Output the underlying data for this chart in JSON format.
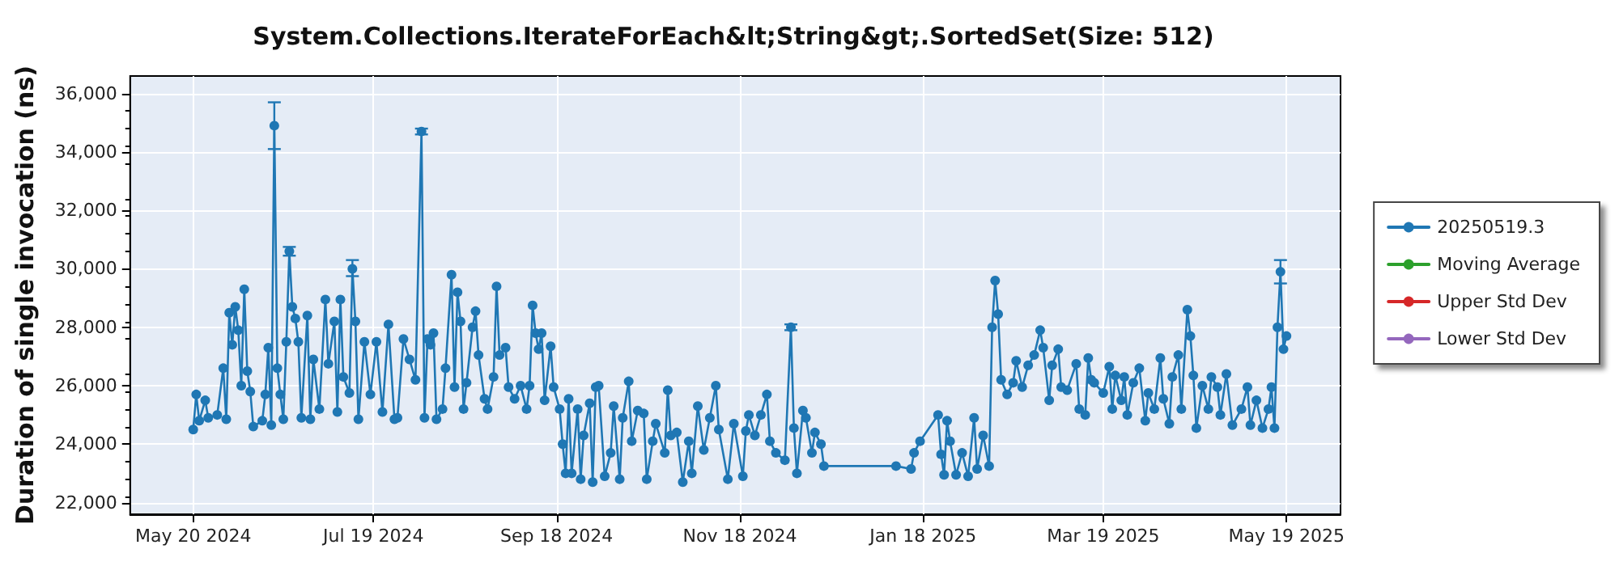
{
  "chart_data": {
    "type": "line",
    "title": "System.Collections.IterateForEach&lt;String&gt;.SortedSet(Size: 512)",
    "ylabel": "Duration of single invocation (ns)",
    "x": [
      "2024-05-20",
      "2024-05-21",
      "2024-05-22",
      "2024-05-24",
      "2024-05-25",
      "2024-05-28",
      "2024-05-30",
      "2024-05-31",
      "2024-06-01",
      "2024-06-02",
      "2024-06-03",
      "2024-06-04",
      "2024-06-05",
      "2024-06-06",
      "2024-06-07",
      "2024-06-08",
      "2024-06-09",
      "2024-06-12",
      "2024-06-13",
      "2024-06-14",
      "2024-06-15",
      "2024-06-16",
      "2024-06-17",
      "2024-06-18",
      "2024-06-19",
      "2024-06-20",
      "2024-06-21",
      "2024-06-22",
      "2024-06-23",
      "2024-06-24",
      "2024-06-25",
      "2024-06-27",
      "2024-06-28",
      "2024-06-29",
      "2024-07-01",
      "2024-07-03",
      "2024-07-04",
      "2024-07-06",
      "2024-07-07",
      "2024-07-08",
      "2024-07-09",
      "2024-07-11",
      "2024-07-12",
      "2024-07-13",
      "2024-07-14",
      "2024-07-16",
      "2024-07-18",
      "2024-07-20",
      "2024-07-22",
      "2024-07-24",
      "2024-07-26",
      "2024-07-27",
      "2024-07-29",
      "2024-07-31",
      "2024-08-02",
      "2024-08-04",
      "2024-08-05",
      "2024-08-06",
      "2024-08-07",
      "2024-08-08",
      "2024-08-09",
      "2024-08-11",
      "2024-08-12",
      "2024-08-14",
      "2024-08-15",
      "2024-08-16",
      "2024-08-17",
      "2024-08-18",
      "2024-08-19",
      "2024-08-21",
      "2024-08-22",
      "2024-08-23",
      "2024-08-25",
      "2024-08-26",
      "2024-08-28",
      "2024-08-29",
      "2024-08-30",
      "2024-09-01",
      "2024-09-02",
      "2024-09-04",
      "2024-09-06",
      "2024-09-08",
      "2024-09-09",
      "2024-09-10",
      "2024-09-11",
      "2024-09-12",
      "2024-09-13",
      "2024-09-14",
      "2024-09-16",
      "2024-09-17",
      "2024-09-19",
      "2024-09-20",
      "2024-09-21",
      "2024-09-22",
      "2024-09-23",
      "2024-09-25",
      "2024-09-26",
      "2024-09-27",
      "2024-09-29",
      "2024-09-30",
      "2024-10-01",
      "2024-10-02",
      "2024-10-04",
      "2024-10-06",
      "2024-10-07",
      "2024-10-09",
      "2024-10-10",
      "2024-10-12",
      "2024-10-13",
      "2024-10-15",
      "2024-10-17",
      "2024-10-18",
      "2024-10-20",
      "2024-10-21",
      "2024-10-24",
      "2024-10-25",
      "2024-10-26",
      "2024-10-28",
      "2024-10-30",
      "2024-11-01",
      "2024-11-02",
      "2024-11-04",
      "2024-11-06",
      "2024-11-08",
      "2024-11-10",
      "2024-11-11",
      "2024-11-14",
      "2024-11-16",
      "2024-11-19",
      "2024-11-20",
      "2024-11-21",
      "2024-11-23",
      "2024-11-25",
      "2024-11-27",
      "2024-11-28",
      "2024-11-30",
      "2024-12-03",
      "2024-12-05",
      "2024-12-06",
      "2024-12-07",
      "2024-12-09",
      "2024-12-10",
      "2024-12-12",
      "2024-12-13",
      "2024-12-15",
      "2024-12-16",
      "2025-01-09",
      "2025-01-14",
      "2025-01-15",
      "2025-01-17",
      "2025-01-23",
      "2025-01-24",
      "2025-01-25",
      "2025-01-26",
      "2025-01-27",
      "2025-01-29",
      "2025-01-31",
      "2025-02-02",
      "2025-02-04",
      "2025-02-05",
      "2025-02-07",
      "2025-02-09",
      "2025-02-10",
      "2025-02-11",
      "2025-02-12",
      "2025-02-13",
      "2025-02-15",
      "2025-02-17",
      "2025-02-18",
      "2025-02-20",
      "2025-02-22",
      "2025-02-24",
      "2025-02-26",
      "2025-02-27",
      "2025-03-01",
      "2025-03-02",
      "2025-03-04",
      "2025-03-05",
      "2025-03-07",
      "2025-03-10",
      "2025-03-11",
      "2025-03-13",
      "2025-03-14",
      "2025-03-15",
      "2025-03-16",
      "2025-03-19",
      "2025-03-21",
      "2025-03-22",
      "2025-03-23",
      "2025-03-25",
      "2025-03-26",
      "2025-03-27",
      "2025-03-29",
      "2025-03-31",
      "2025-04-02",
      "2025-04-03",
      "2025-04-05",
      "2025-04-07",
      "2025-04-08",
      "2025-04-10",
      "2025-04-11",
      "2025-04-13",
      "2025-04-14",
      "2025-04-16",
      "2025-04-17",
      "2025-04-18",
      "2025-04-19",
      "2025-04-21",
      "2025-04-23",
      "2025-04-24",
      "2025-04-26",
      "2025-04-27",
      "2025-04-29",
      "2025-05-01",
      "2025-05-04",
      "2025-05-06",
      "2025-05-07",
      "2025-05-09",
      "2025-05-11",
      "2025-05-13",
      "2025-05-14",
      "2025-05-15",
      "2025-05-16",
      "2025-05-17",
      "2025-05-18",
      "2025-05-19"
    ],
    "series": [
      {
        "name": "20250519.3",
        "color": "#1f77b4",
        "values": [
          24500,
          25700,
          24800,
          25500,
          24900,
          25000,
          26600,
          24850,
          28500,
          27400,
          28700,
          27900,
          26000,
          29300,
          26500,
          25800,
          24600,
          24800,
          25700,
          27300,
          24650,
          34900,
          26600,
          25700,
          24850,
          27500,
          30600,
          28700,
          28300,
          27500,
          24900,
          28400,
          24850,
          26900,
          25200,
          28950,
          26750,
          28200,
          25100,
          28950,
          26300,
          25750,
          30000,
          28200,
          24850,
          27500,
          25700,
          27500,
          25100,
          28100,
          24850,
          24900,
          27600,
          26900,
          26200,
          34700,
          24900,
          27600,
          27400,
          27800,
          24850,
          25200,
          26600,
          29800,
          25950,
          29200,
          28200,
          25200,
          26100,
          28000,
          28550,
          27050,
          25550,
          25200,
          26300,
          29400,
          27050,
          27300,
          25950,
          25550,
          26000,
          25200,
          26000,
          28750,
          27800,
          27250,
          27800,
          25500,
          27350,
          25950,
          25200,
          24000,
          23000,
          25550,
          23000,
          25200,
          22800,
          24300,
          25400,
          22700,
          25950,
          26000,
          22900,
          23700,
          25300,
          22800,
          24900,
          26150,
          24100,
          25150,
          25050,
          22800,
          24100,
          24700,
          23700,
          25850,
          24300,
          24400,
          22700,
          24100,
          23000,
          25300,
          23800,
          24900,
          26000,
          24500,
          22800,
          24700,
          22900,
          24450,
          25000,
          24300,
          25000,
          25700,
          24100,
          23700,
          23450,
          28000,
          24550,
          23000,
          25150,
          24900,
          23700,
          24400,
          24000,
          23250,
          23250,
          23150,
          23700,
          24100,
          25000,
          23650,
          22950,
          24800,
          24100,
          22950,
          23700,
          22900,
          24900,
          23150,
          24300,
          23250,
          28000,
          29600,
          28450,
          26200,
          25700,
          26100,
          26850,
          25950,
          26700,
          27050,
          27900,
          27300,
          25500,
          26700,
          27250,
          25950,
          25850,
          26750,
          25200,
          25000,
          26950,
          26200,
          26100,
          25750,
          26650,
          25200,
          26350,
          25500,
          26300,
          25000,
          26100,
          26600,
          24800,
          25750,
          25200,
          26950,
          25550,
          24700,
          26300,
          27050,
          25200,
          28600,
          27700,
          26350,
          24550,
          26000,
          25200,
          26300,
          25950,
          25000,
          26400,
          24650,
          25200,
          25950,
          24650,
          25500,
          24550,
          25200,
          25950,
          24550,
          28000,
          29900,
          27250,
          27700
        ],
        "errors": [
          null,
          null,
          null,
          null,
          null,
          null,
          null,
          null,
          null,
          null,
          null,
          null,
          null,
          null,
          null,
          null,
          null,
          null,
          null,
          null,
          null,
          [
            34100,
            35700
          ],
          null,
          null,
          null,
          null,
          150,
          null,
          null,
          null,
          null,
          null,
          null,
          null,
          null,
          null,
          null,
          null,
          null,
          null,
          null,
          null,
          [
            29750,
            30300
          ],
          null,
          null,
          null,
          null,
          null,
          null,
          null,
          null,
          null,
          null,
          null,
          null,
          100,
          null,
          null,
          null,
          null,
          null,
          null,
          null,
          null,
          null,
          null,
          null,
          null,
          null,
          null,
          null,
          null,
          null,
          null,
          null,
          null,
          null,
          null,
          null,
          null,
          null,
          null,
          null,
          null,
          null,
          null,
          null,
          null,
          null,
          null,
          null,
          null,
          null,
          null,
          null,
          null,
          null,
          null,
          null,
          null,
          null,
          null,
          null,
          null,
          null,
          null,
          null,
          null,
          null,
          null,
          null,
          null,
          null,
          null,
          null,
          null,
          null,
          null,
          null,
          null,
          null,
          null,
          null,
          null,
          null,
          null,
          null,
          null,
          null,
          null,
          null,
          null,
          null,
          null,
          null,
          null,
          null,
          100,
          null,
          null,
          null,
          null,
          null,
          null,
          null,
          null,
          null,
          null,
          null,
          null,
          null,
          null,
          null,
          null,
          null,
          null,
          null,
          null,
          null,
          null,
          null,
          null,
          null,
          null,
          null,
          null,
          null,
          null,
          null,
          null,
          null,
          null,
          null,
          null,
          null,
          null,
          null,
          null,
          null,
          null,
          null,
          null,
          null,
          null,
          null,
          null,
          null,
          null,
          null,
          null,
          null,
          null,
          null,
          null,
          null,
          null,
          null,
          null,
          null,
          null,
          null,
          null,
          null,
          null,
          null,
          null,
          null,
          null,
          null,
          null,
          null,
          null,
          null,
          null,
          null,
          null,
          null,
          null,
          null,
          null,
          null,
          null,
          null,
          [
            29500,
            30300
          ],
          null,
          null
        ]
      },
      {
        "name": "Moving Average",
        "color": "#2ca02c",
        "values": [
          null,
          null,
          null,
          null,
          null,
          null,
          null,
          null,
          null,
          null,
          null,
          null,
          null,
          null,
          null,
          null,
          null,
          null,
          null,
          null,
          null,
          null,
          null,
          null,
          null,
          null,
          null,
          null,
          null,
          null,
          null,
          null,
          null,
          null,
          null,
          null,
          null,
          null,
          null,
          null,
          null,
          null,
          null,
          null,
          null,
          null,
          null,
          null,
          null,
          null,
          null,
          null,
          null,
          null,
          null,
          null,
          null,
          null,
          null,
          null,
          null,
          null,
          null,
          null,
          null,
          null,
          null,
          null,
          null,
          null,
          null,
          null,
          null,
          null,
          null,
          null,
          null,
          null,
          null,
          null,
          null,
          null,
          null,
          null,
          null,
          null,
          null,
          null,
          null,
          null,
          null,
          null,
          null,
          null,
          null,
          null,
          null,
          null,
          null,
          null,
          null,
          null,
          null,
          null,
          null,
          null,
          null,
          null,
          null,
          null,
          null,
          null,
          null,
          null,
          null,
          null,
          null,
          null,
          null,
          null,
          null,
          null,
          null,
          null,
          null,
          null,
          null,
          null,
          null,
          null,
          null,
          null,
          null,
          null,
          null,
          null,
          null,
          null,
          null,
          null,
          null,
          null,
          null,
          null,
          null,
          null,
          null,
          null,
          null,
          null,
          null,
          null,
          null,
          null,
          null,
          null,
          null,
          null,
          null,
          null,
          null,
          null,
          null,
          null,
          null,
          null,
          null,
          null,
          null,
          null,
          null,
          null,
          null,
          null,
          null,
          null,
          null,
          null,
          null,
          null,
          null,
          null,
          null,
          null,
          null,
          null,
          null,
          null,
          null,
          null,
          null,
          null,
          null,
          null,
          null,
          null,
          null,
          null,
          null,
          null,
          null,
          null,
          null,
          null,
          null,
          null,
          null,
          null,
          null,
          null,
          null,
          null,
          null,
          null,
          null,
          null,
          null,
          null,
          null,
          null,
          null,
          null,
          null,
          null,
          null,
          null
        ]
      },
      {
        "name": "Upper Std Dev",
        "color": "#d62728",
        "values": [
          null,
          null,
          null,
          null,
          null,
          null,
          null,
          null,
          null,
          null,
          null,
          null,
          null,
          null,
          null,
          null,
          null,
          null,
          null,
          null,
          null,
          null,
          null,
          null,
          null,
          null,
          null,
          null,
          null,
          null,
          null,
          null,
          null,
          null,
          null,
          null,
          null,
          null,
          null,
          null,
          null,
          null,
          null,
          null,
          null,
          null,
          null,
          null,
          null,
          null,
          null,
          null,
          null,
          null,
          null,
          null,
          null,
          null,
          null,
          null,
          null,
          null,
          null,
          null,
          null,
          null,
          null,
          null,
          null,
          null,
          null,
          null,
          null,
          null,
          null,
          null,
          null,
          null,
          null,
          null,
          null,
          null,
          null,
          null,
          null,
          null,
          null,
          null,
          null,
          null,
          null,
          null,
          null,
          null,
          null,
          null,
          null,
          null,
          null,
          null,
          null,
          null,
          null,
          null,
          null,
          null,
          null,
          null,
          null,
          null,
          null,
          null,
          null,
          null,
          null,
          null,
          null,
          null,
          null,
          null,
          null,
          null,
          null,
          null,
          null,
          null,
          null,
          null,
          null,
          null,
          null,
          null,
          null,
          null,
          null,
          null,
          null,
          null,
          null,
          null,
          null,
          null,
          null,
          null,
          null,
          null,
          null,
          null,
          null,
          null,
          null,
          null,
          null,
          null,
          null,
          null,
          null,
          null,
          null,
          null,
          null,
          null,
          null,
          null,
          null,
          null,
          null,
          null,
          null,
          null,
          null,
          null,
          null,
          null,
          null,
          null,
          null,
          null,
          null,
          null,
          null,
          null,
          null,
          null,
          null,
          null,
          null,
          null,
          null,
          null,
          null,
          null,
          null,
          null,
          null,
          null,
          null,
          null,
          null,
          null,
          null,
          null,
          null,
          null,
          null,
          null,
          null,
          null,
          null,
          null,
          null,
          null,
          null,
          null,
          null,
          null,
          null,
          null,
          null,
          null,
          null,
          null,
          null,
          null,
          null,
          null
        ]
      },
      {
        "name": "Lower Std Dev",
        "color": "#9467bd",
        "values": [
          null,
          null,
          null,
          null,
          null,
          null,
          null,
          null,
          null,
          null,
          null,
          null,
          null,
          null,
          null,
          null,
          null,
          null,
          null,
          null,
          null,
          null,
          null,
          null,
          null,
          null,
          null,
          null,
          null,
          null,
          null,
          null,
          null,
          null,
          null,
          null,
          null,
          null,
          null,
          null,
          null,
          null,
          null,
          null,
          null,
          null,
          null,
          null,
          null,
          null,
          null,
          null,
          null,
          null,
          null,
          null,
          null,
          null,
          null,
          null,
          null,
          null,
          null,
          null,
          null,
          null,
          null,
          null,
          null,
          null,
          null,
          null,
          null,
          null,
          null,
          null,
          null,
          null,
          null,
          null,
          null,
          null,
          null,
          null,
          null,
          null,
          null,
          null,
          null,
          null,
          null,
          null,
          null,
          null,
          null,
          null,
          null,
          null,
          null,
          null,
          null,
          null,
          null,
          null,
          null,
          null,
          null,
          null,
          null,
          null,
          null,
          null,
          null,
          null,
          null,
          null,
          null,
          null,
          null,
          null,
          null,
          null,
          null,
          null,
          null,
          null,
          null,
          null,
          null,
          null,
          null,
          null,
          null,
          null,
          null,
          null,
          null,
          null,
          null,
          null,
          null,
          null,
          null,
          null,
          null,
          null,
          null,
          null,
          null,
          null,
          null,
          null,
          null,
          null,
          null,
          null,
          null,
          null,
          null,
          null,
          null,
          null,
          null,
          null,
          null,
          null,
          null,
          null,
          null,
          null,
          null,
          null,
          null,
          null,
          null,
          null,
          null,
          null,
          null,
          null,
          null,
          null,
          null,
          null,
          null,
          null,
          null,
          null,
          null,
          null,
          null,
          null,
          null,
          null,
          null,
          null,
          null,
          null,
          null,
          null,
          null,
          null,
          null,
          null,
          null,
          null,
          null,
          null,
          null,
          null,
          null,
          null,
          null,
          null,
          null,
          null,
          null,
          null,
          null,
          null,
          null,
          null,
          null,
          null,
          null,
          null
        ]
      }
    ],
    "xlim": [
      "2024-04-29",
      "2025-06-06"
    ],
    "xticks": [
      {
        "value": "2024-05-20",
        "label": "May 20 2024"
      },
      {
        "value": "2024-07-19",
        "label": "Jul 19 2024"
      },
      {
        "value": "2024-09-18",
        "label": "Sep 18 2024"
      },
      {
        "value": "2024-11-18",
        "label": "Nov 18 2024"
      },
      {
        "value": "2025-01-18",
        "label": "Jan 18 2025"
      },
      {
        "value": "2025-03-19",
        "label": "Mar 19 2025"
      },
      {
        "value": "2025-05-19",
        "label": "May 19 2025"
      }
    ],
    "ylim": [
      21600,
      36600
    ],
    "yticks": [
      {
        "value": 22000,
        "label": "22,000"
      },
      {
        "value": 24000,
        "label": "24,000"
      },
      {
        "value": 26000,
        "label": "26,000"
      },
      {
        "value": 28000,
        "label": "28,000"
      },
      {
        "value": 30000,
        "label": "30,000"
      },
      {
        "value": 32000,
        "label": "32,000"
      },
      {
        "value": 34000,
        "label": "34,000"
      },
      {
        "value": 36000,
        "label": "36,000"
      }
    ],
    "grid": true,
    "legend": "right",
    "marker": "circle",
    "line_style": "solid"
  }
}
